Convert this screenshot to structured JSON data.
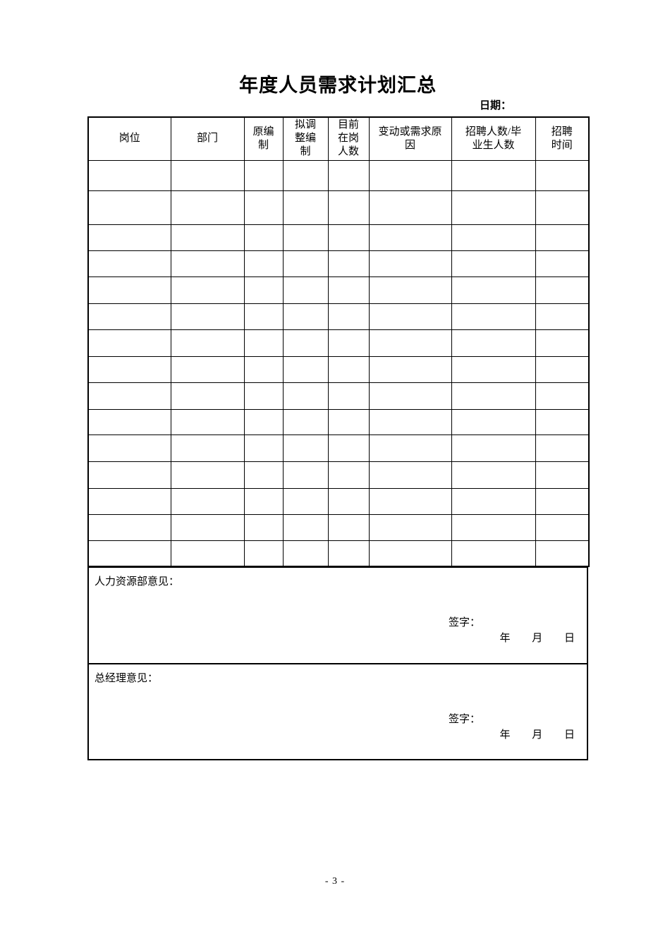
{
  "page": {
    "title": "年度人员需求计划汇总",
    "date_label": "日期：",
    "page_number": "- 3 -"
  },
  "table": {
    "columns": [
      "岗位",
      "部门",
      "原编\n制",
      "拟调\n整编\n制",
      "目前\n在岗\n人数",
      "变动或需求原\n因",
      "招聘人数/毕\n业生人数",
      "招聘\n时间"
    ],
    "row_count": 15,
    "rows_empty": true
  },
  "sections": [
    {
      "label": "人力资源部意见：",
      "signature_label": "签字：",
      "date_line": "年 月 日"
    },
    {
      "label": "总经理意见：",
      "signature_label": "签字：",
      "date_line": "年 月 日"
    }
  ],
  "colors": {
    "background": "#ffffff",
    "text": "#000000",
    "border": "#000000"
  }
}
